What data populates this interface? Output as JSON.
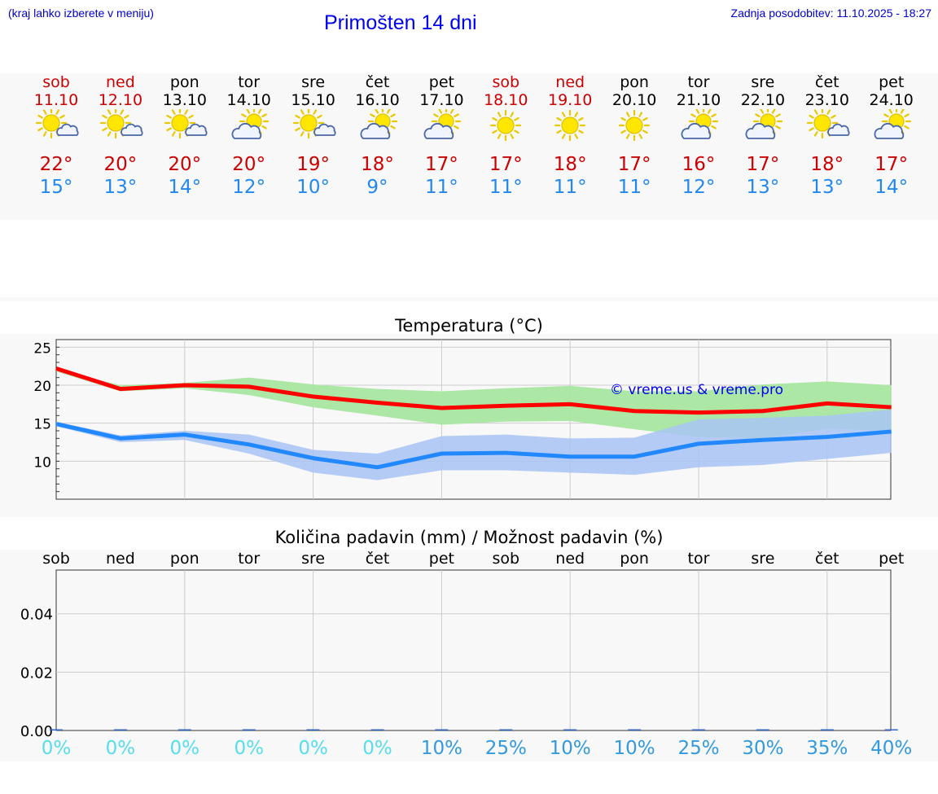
{
  "header": {
    "left_note": "(kraj lahko izberete v meniju)",
    "title": "Primošten 14 dni",
    "updated": "Zadnja posodobitev: 11.10.2025 - 18:27"
  },
  "days": [
    {
      "name": "sob",
      "date": "11.10",
      "weekend": true,
      "icon": "sun-cloud-icon",
      "max": "22°",
      "min": "15°"
    },
    {
      "name": "ned",
      "date": "12.10",
      "weekend": true,
      "icon": "sun-cloud-icon",
      "max": "20°",
      "min": "13°"
    },
    {
      "name": "pon",
      "date": "13.10",
      "weekend": false,
      "icon": "sun-cloud-icon",
      "max": "20°",
      "min": "14°"
    },
    {
      "name": "tor",
      "date": "14.10",
      "weekend": false,
      "icon": "cloud-sun-icon",
      "max": "20°",
      "min": "12°"
    },
    {
      "name": "sre",
      "date": "15.10",
      "weekend": false,
      "icon": "sun-cloud-icon",
      "max": "19°",
      "min": "10°"
    },
    {
      "name": "čet",
      "date": "16.10",
      "weekend": false,
      "icon": "cloud-sun-icon",
      "max": "18°",
      "min": "9°"
    },
    {
      "name": "pet",
      "date": "17.10",
      "weekend": false,
      "icon": "cloud-sun-icon",
      "max": "17°",
      "min": "11°"
    },
    {
      "name": "sob",
      "date": "18.10",
      "weekend": true,
      "icon": "sun-icon",
      "max": "17°",
      "min": "11°"
    },
    {
      "name": "ned",
      "date": "19.10",
      "weekend": true,
      "icon": "sun-icon",
      "max": "18°",
      "min": "11°"
    },
    {
      "name": "pon",
      "date": "20.10",
      "weekend": false,
      "icon": "sun-icon",
      "max": "17°",
      "min": "11°"
    },
    {
      "name": "tor",
      "date": "21.10",
      "weekend": false,
      "icon": "cloud-sun-icon",
      "max": "16°",
      "min": "12°"
    },
    {
      "name": "sre",
      "date": "22.10",
      "weekend": false,
      "icon": "cloud-sun-icon",
      "max": "17°",
      "min": "13°"
    },
    {
      "name": "čet",
      "date": "23.10",
      "weekend": false,
      "icon": "sun-cloud-icon",
      "max": "18°",
      "min": "13°"
    },
    {
      "name": "pet",
      "date": "24.10",
      "weekend": false,
      "icon": "cloud-sun-icon",
      "max": "17°",
      "min": "14°"
    }
  ],
  "colors": {
    "weekend": "#cc0000",
    "weekday": "#000000",
    "max_line": "#ff0000",
    "min_line": "#2288ff",
    "max_band": "#a8e6a0",
    "min_band": "#a8c4f4",
    "precip_low": "#55ddee",
    "precip_high": "#3399dd"
  },
  "chart_data": [
    {
      "type": "line",
      "title": "Temperatura (°C)",
      "watermark": "© vreme.us & vreme.pro",
      "ylim": [
        5,
        26
      ],
      "yticks": [
        "25",
        "20",
        "15",
        "10"
      ],
      "ytick_values": [
        25,
        20,
        15,
        10
      ],
      "x": [
        0,
        1,
        2,
        3,
        4,
        5,
        6,
        7,
        8,
        9,
        10,
        11,
        12,
        13
      ],
      "series": [
        {
          "name": "max",
          "values": [
            22.2,
            19.5,
            20.0,
            19.8,
            18.5,
            17.7,
            17.0,
            17.3,
            17.5,
            16.6,
            16.4,
            16.6,
            17.6,
            17.1
          ]
        },
        {
          "name": "min",
          "values": [
            14.9,
            13.0,
            13.5,
            12.2,
            10.4,
            9.2,
            11.0,
            11.1,
            10.6,
            10.6,
            12.3,
            12.8,
            13.2,
            13.9
          ]
        },
        {
          "name": "max_band_high",
          "values": [
            22.0,
            20.0,
            20.3,
            21.0,
            20.1,
            19.5,
            19.2,
            19.6,
            19.9,
            19.2,
            19.2,
            20.1,
            20.5,
            20.0
          ]
        },
        {
          "name": "max_band_low",
          "values": [
            21.8,
            19.2,
            19.6,
            18.7,
            17.1,
            16.0,
            14.8,
            15.2,
            15.3,
            14.2,
            13.2,
            13.0,
            14.3,
            14.0
          ]
        },
        {
          "name": "min_band_high",
          "values": [
            15.2,
            13.4,
            14.0,
            13.5,
            11.5,
            11.0,
            13.3,
            13.5,
            13.0,
            13.1,
            15.5,
            15.7,
            16.0,
            16.8
          ]
        },
        {
          "name": "min_band_low",
          "values": [
            14.6,
            12.5,
            12.8,
            11.0,
            8.5,
            7.5,
            8.8,
            8.8,
            8.5,
            8.2,
            9.2,
            9.5,
            10.3,
            11.1
          ]
        }
      ]
    },
    {
      "type": "bar",
      "title": "Količina padavin (mm) / Možnost padavin (%)",
      "categories": [
        "sob",
        "ned",
        "pon",
        "tor",
        "sre",
        "čet",
        "pet",
        "sob",
        "ned",
        "pon",
        "tor",
        "sre",
        "čet",
        "pet"
      ],
      "values": [
        0,
        0,
        0,
        0,
        0,
        0,
        0,
        0,
        0,
        0,
        0,
        0,
        0,
        0
      ],
      "ylim": [
        0,
        0.055
      ],
      "yticks": [
        "0.04",
        "0.02",
        "0.00"
      ],
      "ytick_values": [
        0.04,
        0.02,
        0.0
      ],
      "chance": [
        "0%",
        "0%",
        "0%",
        "0%",
        "0%",
        "0%",
        "10%",
        "25%",
        "10%",
        "10%",
        "25%",
        "30%",
        "35%",
        "40%"
      ],
      "chance_values": [
        0,
        0,
        0,
        0,
        0,
        0,
        10,
        25,
        10,
        10,
        25,
        30,
        35,
        40
      ]
    }
  ]
}
